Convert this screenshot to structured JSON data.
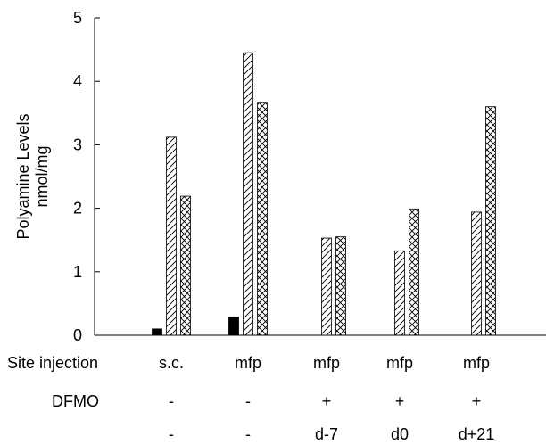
{
  "chart_data": {
    "type": "bar",
    "categories": [
      "s.c.",
      "mfp",
      "mfp",
      "mfp",
      "mfp"
    ],
    "series": [
      {
        "values": [
          0.1,
          0.29,
          0,
          0,
          0
        ],
        "pattern": "solid"
      },
      {
        "values": [
          3.12,
          4.45,
          1.53,
          1.33,
          1.94
        ],
        "pattern": "diagonal-hatch"
      },
      {
        "values": [
          2.19,
          3.67,
          1.55,
          1.99,
          3.6
        ],
        "pattern": "crosshatch"
      }
    ],
    "ylabel_lines": [
      "Polyamine Levels",
      "nmol/mg"
    ],
    "ylim": [
      0,
      5
    ],
    "yticks": [
      0,
      1,
      2,
      3,
      4,
      5
    ],
    "grid": false,
    "table_rows": [
      {
        "label": "Site injection",
        "values": [
          "s.c.",
          "mfp",
          "mfp",
          "mfp",
          "mfp"
        ]
      },
      {
        "label": "DFMO",
        "values": [
          "-",
          "-",
          "+",
          "+",
          "+"
        ]
      },
      {
        "label": "",
        "values": [
          "-",
          "-",
          "d-7",
          "d0",
          "d+21"
        ]
      }
    ],
    "colors": {
      "bar_fill": "#000000",
      "bar_outline": "#000000",
      "background": "#ffffff"
    }
  }
}
